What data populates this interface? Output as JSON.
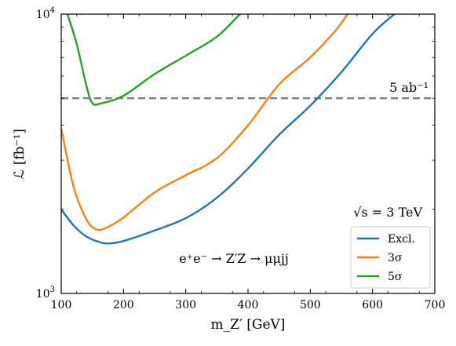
{
  "chart_data": {
    "type": "line",
    "xlabel": "m_Z′ [GeV]",
    "ylabel": "ℒ [fb⁻¹]",
    "xlim": [
      100,
      700
    ],
    "ylim": [
      1000,
      10000
    ],
    "yscale": "log",
    "x_ticks": [
      100,
      200,
      300,
      400,
      500,
      600,
      700
    ],
    "y_ticks": [
      {
        "value": 1000,
        "base": "10",
        "exp": "3"
      },
      {
        "value": 10000,
        "base": "10",
        "exp": "4"
      }
    ],
    "y_minor_ticks": [
      2000,
      3000,
      4000,
      5000,
      6000,
      7000,
      8000,
      9000
    ],
    "series": [
      {
        "name": "Excl.",
        "color": "#1f77b4",
        "points": [
          [
            100,
            2000
          ],
          [
            120,
            1750
          ],
          [
            140,
            1600
          ],
          [
            160,
            1530
          ],
          [
            175,
            1510
          ],
          [
            200,
            1540
          ],
          [
            250,
            1680
          ],
          [
            300,
            1860
          ],
          [
            350,
            2200
          ],
          [
            400,
            2800
          ],
          [
            450,
            3700
          ],
          [
            500,
            4700
          ],
          [
            550,
            6200
          ],
          [
            600,
            8500
          ],
          [
            635,
            10000
          ]
        ]
      },
      {
        "name": "3σ",
        "color": "#ff7f0e",
        "points": [
          [
            100,
            3900
          ],
          [
            120,
            2400
          ],
          [
            140,
            1850
          ],
          [
            155,
            1700
          ],
          [
            170,
            1710
          ],
          [
            200,
            1870
          ],
          [
            250,
            2300
          ],
          [
            300,
            2650
          ],
          [
            350,
            3050
          ],
          [
            400,
            4000
          ],
          [
            450,
            5600
          ],
          [
            500,
            7000
          ],
          [
            540,
            8700
          ],
          [
            560,
            10000
          ]
        ]
      },
      {
        "name": "5σ",
        "color": "#2ca02c",
        "points": [
          [
            110,
            10000
          ],
          [
            125,
            7800
          ],
          [
            140,
            5600
          ],
          [
            150,
            4800
          ],
          [
            165,
            4800
          ],
          [
            200,
            5100
          ],
          [
            250,
            6100
          ],
          [
            300,
            7100
          ],
          [
            350,
            8300
          ],
          [
            385,
            9900
          ],
          [
            388,
            10000
          ]
        ]
      }
    ],
    "hline": {
      "value": 5000,
      "label": "5 ab⁻¹",
      "color": "#808080"
    },
    "annotations": {
      "energy": "√s = 3 TeV",
      "process": "e⁺e⁻ → Z′Z → μμjj"
    },
    "legend": {
      "placement": "bottom-right"
    }
  }
}
